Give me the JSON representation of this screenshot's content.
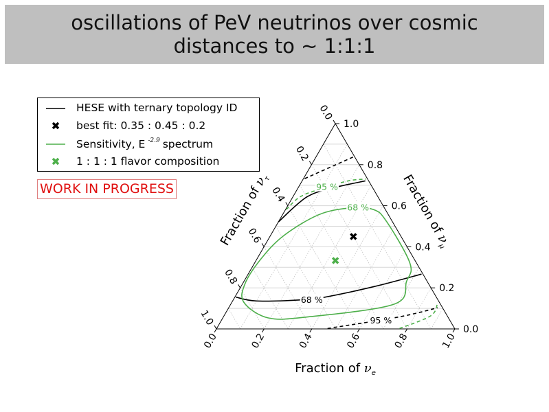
{
  "header": {
    "title_line1": "oscillations of PeV neutrinos over cosmic",
    "title_line2": "distances to ~ 1:1:1"
  },
  "legend": {
    "items": [
      {
        "label": "HESE with ternary topology ID",
        "symbol": "line",
        "color": "#000000"
      },
      {
        "label": "best fit: 0.35 : 0.45 : 0.2",
        "symbol": "x-marker",
        "color": "#000000"
      },
      {
        "label_pre": "Sensitivity, E",
        "label_sup": "-2.9",
        "label_post": "spectrum",
        "symbol": "line",
        "color": "#4daf4a"
      },
      {
        "label": "1 : 1 : 1 flavor composition",
        "symbol": "x-marker",
        "color": "#4daf4a"
      }
    ]
  },
  "watermark": "WORK IN PROGRESS",
  "chart_data": {
    "type": "ternary",
    "axes": {
      "bottom": {
        "label": "Fraction of ",
        "symbol": "ν",
        "sub": "e",
        "ticks": [
          "0.0",
          "0.2",
          "0.4",
          "0.6",
          "0.8",
          "1.0"
        ]
      },
      "right": {
        "label": "Fraction of ",
        "symbol": "ν",
        "sub": "μ",
        "ticks": [
          "0.0",
          "0.2",
          "0.4",
          "0.6",
          "0.8",
          "1.0"
        ]
      },
      "left": {
        "label": "Fraction of ",
        "symbol": "ν",
        "sub": "τ",
        "ticks": [
          "0.0",
          "0.2",
          "0.4",
          "0.6",
          "0.8",
          "1.0"
        ]
      }
    },
    "grid": true,
    "points": [
      {
        "name": "best fit",
        "nu_e": 0.35,
        "nu_mu": 0.45,
        "nu_tau": 0.2,
        "color": "#000000",
        "marker": "x"
      },
      {
        "name": "1:1:1",
        "nu_e": 0.333,
        "nu_mu": 0.333,
        "nu_tau": 0.333,
        "color": "#4daf4a",
        "marker": "x"
      }
    ],
    "contours": [
      {
        "series": "HESE",
        "level": "68 %",
        "style": "solid",
        "color": "#000000",
        "closed": false,
        "points": [
          [
            0.0,
            0.521
          ],
          [
            0.059,
            0.643
          ],
          [
            0.152,
            0.688
          ],
          [
            0.265,
            0.721
          ]
        ]
      },
      {
        "series": "HESE",
        "level": "68 %",
        "style": "solid",
        "color": "#000000",
        "closed": false,
        "points": [
          [
            0.004,
            0.155
          ],
          [
            0.1,
            0.136
          ],
          [
            0.28,
            0.141
          ],
          [
            0.379,
            0.155
          ],
          [
            0.564,
            0.208
          ],
          [
            0.727,
            0.267
          ]
        ]
      },
      {
        "series": "HESE",
        "level": "95 %",
        "style": "dashed",
        "color": "#000000",
        "closed": false,
        "points": [
          [
            0.005,
            0.732
          ],
          [
            0.16,
            0.84
          ]
        ]
      },
      {
        "series": "HESE",
        "level": "95 %",
        "style": "dashed",
        "color": "#000000",
        "closed": false,
        "points": [
          [
            0.465,
            0.002
          ],
          [
            0.735,
            0.058
          ],
          [
            0.876,
            0.103
          ]
        ]
      },
      {
        "series": "Sensitivity",
        "level": "68 %",
        "style": "solid",
        "color": "#4daf4a",
        "closed": true,
        "points": [
          [
            0.259,
            0.588
          ],
          [
            0.367,
            0.582
          ],
          [
            0.454,
            0.522
          ],
          [
            0.652,
            0.32
          ],
          [
            0.682,
            0.231
          ],
          [
            0.684,
            0.12
          ],
          [
            0.35,
            0.058
          ],
          [
            0.189,
            0.054
          ],
          [
            0.05,
            0.13
          ],
          [
            0.01,
            0.221
          ],
          [
            0.017,
            0.342
          ],
          [
            0.056,
            0.455
          ],
          [
            0.15,
            0.555
          ]
        ]
      },
      {
        "series": "Sensitivity",
        "level": "95 %",
        "style": "dashed",
        "color": "#4daf4a",
        "closed": false,
        "points": [
          [
            0.003,
            0.582
          ],
          [
            0.03,
            0.643
          ],
          [
            0.097,
            0.682
          ],
          [
            0.193,
            0.721
          ],
          [
            0.264,
            0.73
          ]
        ]
      },
      {
        "series": "Sensitivity",
        "level": "95 %",
        "style": "dashed",
        "color": "#4daf4a",
        "closed": false,
        "points": [
          [
            0.767,
            0.002
          ],
          [
            0.867,
            0.064
          ],
          [
            0.865,
            0.125
          ]
        ]
      }
    ],
    "contour_labels": [
      {
        "text": "95 %",
        "color": "#4daf4a",
        "nu_e": 0.12,
        "nu_mu": 0.69
      },
      {
        "text": "68 %",
        "color": "#4daf4a",
        "nu_e": 0.3,
        "nu_mu": 0.59
      },
      {
        "text": "68 %",
        "color": "#000000",
        "nu_e": 0.33,
        "nu_mu": 0.14
      },
      {
        "text": "95 %",
        "color": "#000000",
        "nu_e": 0.67,
        "nu_mu": 0.04
      }
    ]
  }
}
